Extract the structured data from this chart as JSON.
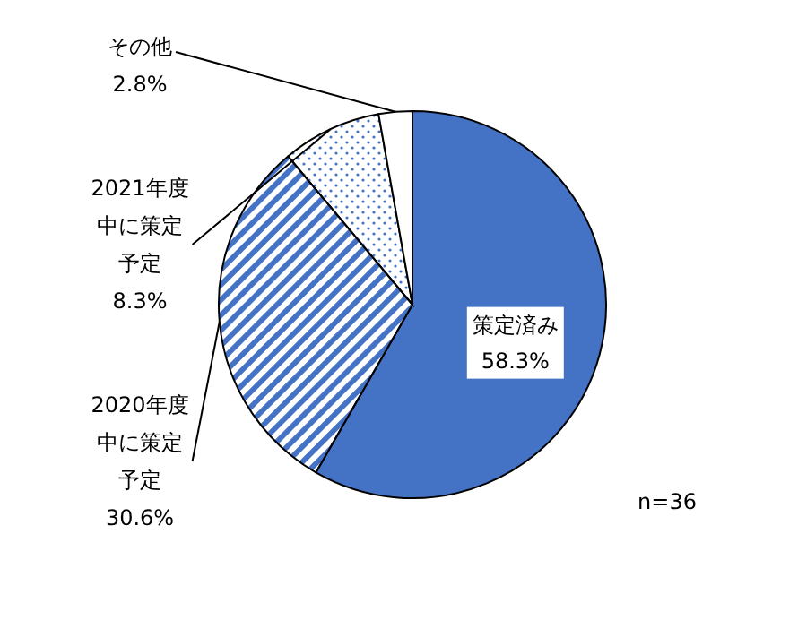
{
  "chart_data": {
    "type": "pie",
    "categories": [
      "策定済み",
      "2020年度中に策定予定",
      "2021年度中に策定予定",
      "その他"
    ],
    "values": [
      58.3,
      30.6,
      8.3,
      2.8
    ],
    "value_labels": [
      "58.3%",
      "30.6%",
      "8.3%",
      "2.8%"
    ],
    "colors": [
      "#4472c4",
      "#4472c4",
      "#4472c4",
      "#ffffff"
    ],
    "annotations": [
      "n=36"
    ]
  }
}
